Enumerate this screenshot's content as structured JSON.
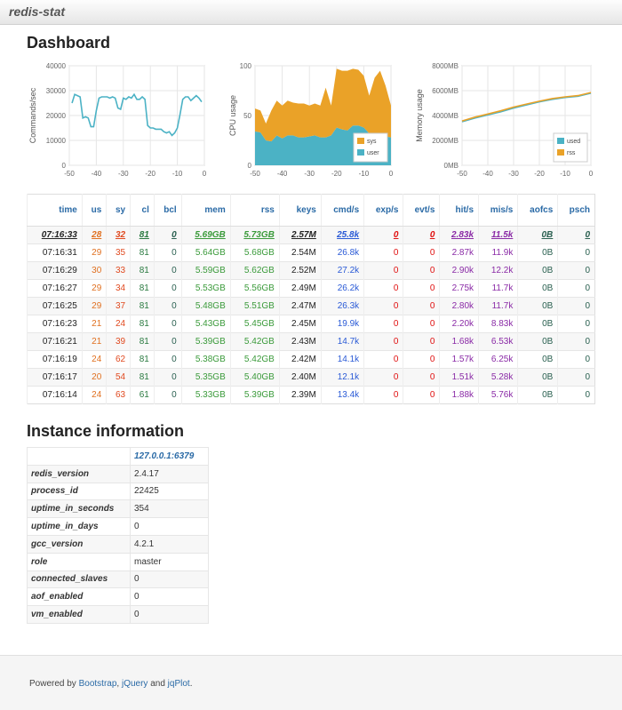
{
  "header": {
    "brand": "redis-stat"
  },
  "dashboard": {
    "title": "Dashboard"
  },
  "chart_data": [
    {
      "type": "line",
      "ylabel": "Commands/sec",
      "x": [
        -49,
        -48,
        -47,
        -46,
        -45,
        -44,
        -43,
        -42,
        -41,
        -40,
        -39,
        -38,
        -37,
        -36,
        -35,
        -34,
        -33,
        -32,
        -31,
        -30,
        -29,
        -28,
        -27,
        -26,
        -25,
        -24,
        -23,
        -22,
        -21,
        -20,
        -19,
        -18,
        -17,
        -16,
        -15,
        -14,
        -13,
        -12,
        -11,
        -10,
        -9,
        -8,
        -7,
        -6,
        -5,
        -4,
        -3,
        -2,
        -1
      ],
      "series": [
        {
          "name": null,
          "color": "#4bb2c5",
          "values": [
            25000,
            28500,
            28000,
            27500,
            19000,
            19500,
            19000,
            15500,
            15500,
            22000,
            27000,
            27500,
            27500,
            27500,
            27000,
            27500,
            27000,
            23000,
            22500,
            27000,
            26500,
            27500,
            27000,
            28500,
            26500,
            26500,
            27500,
            26500,
            16000,
            15000,
            15000,
            14500,
            14500,
            14500,
            13500,
            13000,
            13500,
            12000,
            13000,
            15000,
            20500,
            26500,
            27500,
            27500,
            26000,
            27000,
            28000,
            27000,
            25500
          ]
        }
      ],
      "xlim": [
        -50,
        0
      ],
      "xticks": [
        -50,
        -40,
        -30,
        -20,
        -10,
        0
      ],
      "ylim": [
        0,
        40000
      ],
      "yticks": [
        0,
        10000,
        20000,
        30000,
        40000
      ],
      "grid": true
    },
    {
      "type": "area",
      "ylabel": "CPU usage",
      "stacked": true,
      "legend": "southeast",
      "x": [
        -50,
        -48,
        -46,
        -44,
        -42,
        -40,
        -38,
        -36,
        -34,
        -32,
        -30,
        -28,
        -26,
        -24,
        -22,
        -20,
        -18,
        -16,
        -14,
        -12,
        -10,
        -8,
        -6,
        -4,
        -2,
        0
      ],
      "series": [
        {
          "name": "sys",
          "color": "#eaa228",
          "values": [
            23,
            22,
            17,
            31,
            35,
            33,
            35,
            33,
            34,
            34,
            31,
            32,
            32,
            50,
            30,
            59,
            59,
            60,
            57,
            56,
            52,
            38,
            58,
            65,
            51,
            32
          ]
        },
        {
          "name": "user",
          "color": "#4bb2c5",
          "values": [
            34,
            33,
            25,
            24,
            30,
            27,
            30,
            30,
            28,
            28,
            29,
            30,
            28,
            28,
            30,
            38,
            36,
            35,
            40,
            40,
            38,
            32,
            30,
            30,
            29,
            28
          ]
        }
      ],
      "xlim": [
        -50,
        0
      ],
      "xticks": [
        -50,
        -40,
        -30,
        -20,
        -10,
        0
      ],
      "ylim": [
        0,
        100
      ],
      "yticks": [
        0,
        50,
        100
      ],
      "grid": true
    },
    {
      "type": "line",
      "ylabel": "Memory usage",
      "legend": "southeast",
      "x": [
        -50,
        -45,
        -40,
        -35,
        -30,
        -25,
        -20,
        -15,
        -10,
        -5,
        0
      ],
      "series": [
        {
          "name": "used",
          "color": "#4bb2c5",
          "values": [
            3500,
            3800,
            4050,
            4300,
            4600,
            4850,
            5100,
            5300,
            5450,
            5550,
            5800
          ]
        },
        {
          "name": "rss",
          "color": "#eaa228",
          "values": [
            3560,
            3870,
            4120,
            4380,
            4680,
            4920,
            5150,
            5360,
            5500,
            5600,
            5850
          ]
        }
      ],
      "xlim": [
        -50,
        0
      ],
      "xticks": [
        -50,
        -40,
        -30,
        -20,
        -10,
        0
      ],
      "ylim": [
        0,
        8000
      ],
      "yticks": [
        {
          "value": 0,
          "label": "0MB"
        },
        {
          "value": 2000,
          "label": "2000MB"
        },
        {
          "value": 4000,
          "label": "4000MB"
        },
        {
          "value": 6000,
          "label": "6000MB"
        },
        {
          "value": 8000,
          "label": "8000MB"
        }
      ],
      "grid": true
    }
  ],
  "table": {
    "columns": [
      "time",
      "us",
      "sy",
      "cl",
      "bcl",
      "mem",
      "rss",
      "keys",
      "cmd/s",
      "exp/s",
      "evt/s",
      "hit/s",
      "mis/s",
      "aofcs",
      "psch"
    ],
    "rows": [
      [
        "07:16:33",
        28,
        32,
        81,
        0,
        "5.69GB",
        "5.73GB",
        "2.57M",
        "25.8k",
        0,
        0,
        "2.83k",
        "11.5k",
        "0B",
        0
      ],
      [
        "07:16:31",
        29,
        35,
        81,
        0,
        "5.64GB",
        "5.68GB",
        "2.54M",
        "26.8k",
        0,
        0,
        "2.87k",
        "11.9k",
        "0B",
        0
      ],
      [
        "07:16:29",
        30,
        33,
        81,
        0,
        "5.59GB",
        "5.62GB",
        "2.52M",
        "27.2k",
        0,
        0,
        "2.90k",
        "12.2k",
        "0B",
        0
      ],
      [
        "07:16:27",
        29,
        34,
        81,
        0,
        "5.53GB",
        "5.56GB",
        "2.49M",
        "26.2k",
        0,
        0,
        "2.75k",
        "11.7k",
        "0B",
        0
      ],
      [
        "07:16:25",
        29,
        37,
        81,
        0,
        "5.48GB",
        "5.51GB",
        "2.47M",
        "26.3k",
        0,
        0,
        "2.80k",
        "11.7k",
        "0B",
        0
      ],
      [
        "07:16:23",
        21,
        24,
        81,
        0,
        "5.43GB",
        "5.45GB",
        "2.45M",
        "19.9k",
        0,
        0,
        "2.20k",
        "8.83k",
        "0B",
        0
      ],
      [
        "07:16:21",
        21,
        39,
        81,
        0,
        "5.39GB",
        "5.42GB",
        "2.43M",
        "14.7k",
        0,
        0,
        "1.68k",
        "6.53k",
        "0B",
        0
      ],
      [
        "07:16:19",
        24,
        62,
        81,
        0,
        "5.38GB",
        "5.42GB",
        "2.42M",
        "14.1k",
        0,
        0,
        "1.57k",
        "6.25k",
        "0B",
        0
      ],
      [
        "07:16:17",
        20,
        54,
        81,
        0,
        "5.35GB",
        "5.40GB",
        "2.40M",
        "12.1k",
        0,
        0,
        "1.51k",
        "5.28k",
        "0B",
        0
      ],
      [
        "07:16:14",
        24,
        63,
        61,
        0,
        "5.33GB",
        "5.39GB",
        "2.39M",
        "13.4k",
        0,
        0,
        "1.88k",
        "5.76k",
        "0B",
        0
      ]
    ]
  },
  "instance": {
    "title": "Instance information",
    "host": "127.0.0.1:6379",
    "rows": [
      [
        "redis_version",
        "2.4.17"
      ],
      [
        "process_id",
        "22425"
      ],
      [
        "uptime_in_seconds",
        "354"
      ],
      [
        "uptime_in_days",
        "0"
      ],
      [
        "gcc_version",
        "4.2.1"
      ],
      [
        "role",
        "master"
      ],
      [
        "connected_slaves",
        "0"
      ],
      [
        "aof_enabled",
        "0"
      ],
      [
        "vm_enabled",
        "0"
      ]
    ]
  },
  "footer": {
    "prefix": "Powered by",
    "links": [
      "Bootstrap",
      "jQuery",
      "jqPlot"
    ],
    "separators": [
      ",",
      "and",
      "."
    ]
  }
}
